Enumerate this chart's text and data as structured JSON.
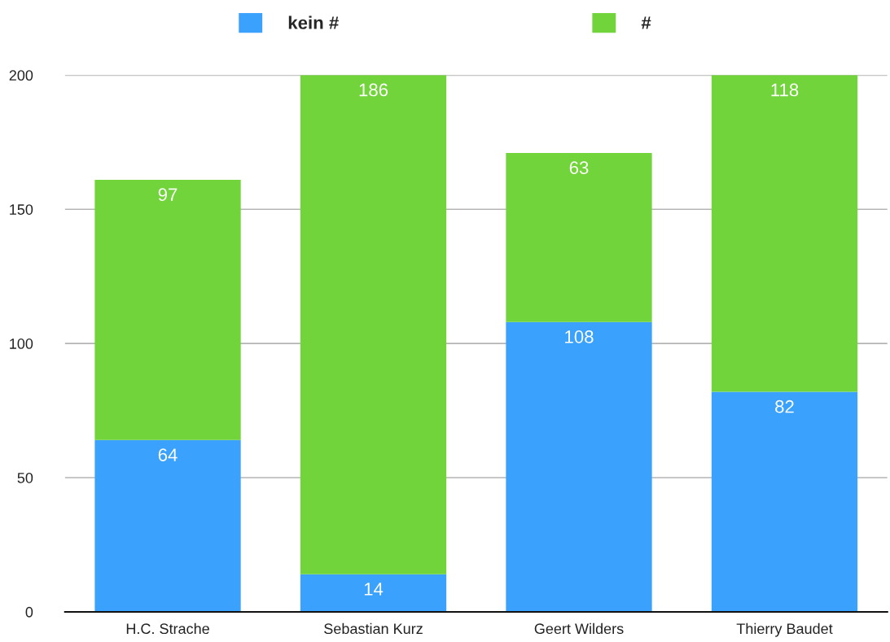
{
  "chart_data": {
    "type": "bar",
    "stacked": true,
    "categories": [
      "H.C. Strache",
      "Sebastian Kurz",
      "Geert Wilders",
      "Thierry Baudet"
    ],
    "series": [
      {
        "name": "kein #",
        "color": "#3aa1fc",
        "values": [
          64,
          14,
          108,
          82
        ]
      },
      {
        "name": "#",
        "color": "#71d43a",
        "values": [
          97,
          186,
          63,
          118
        ]
      }
    ],
    "ylim": [
      0,
      200
    ],
    "yticks": [
      0,
      50,
      100,
      150,
      200
    ],
    "grid": "y",
    "legend": "top",
    "data_labels": true
  }
}
